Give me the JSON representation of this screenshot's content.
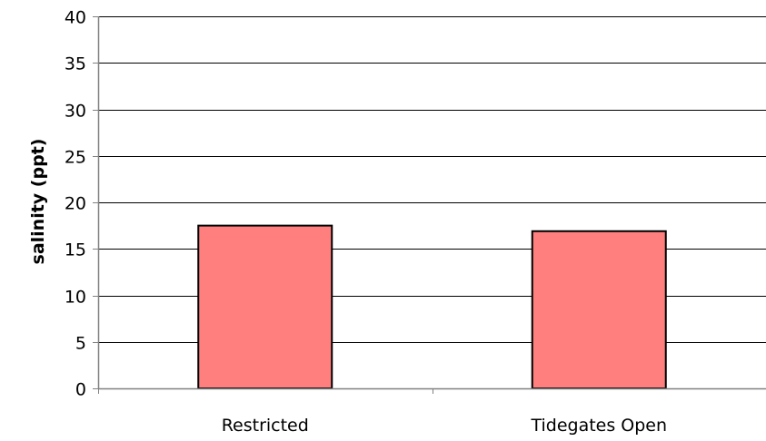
{
  "chart_data": {
    "type": "bar",
    "title": "",
    "xlabel": "",
    "ylabel": "salinity (ppt)",
    "categories": [
      "Restricted",
      "Tidegates Open"
    ],
    "values": [
      17.5,
      16.9
    ],
    "ylim": [
      0,
      40
    ],
    "yticks": [
      0,
      5,
      10,
      15,
      20,
      25,
      30,
      35,
      40
    ],
    "grid": "horizontal",
    "legend": "none",
    "colors": {
      "bar_fill": "#ff7f7f",
      "bar_stroke": "#000000",
      "gridline": "#000000",
      "axis": "#808080"
    }
  }
}
